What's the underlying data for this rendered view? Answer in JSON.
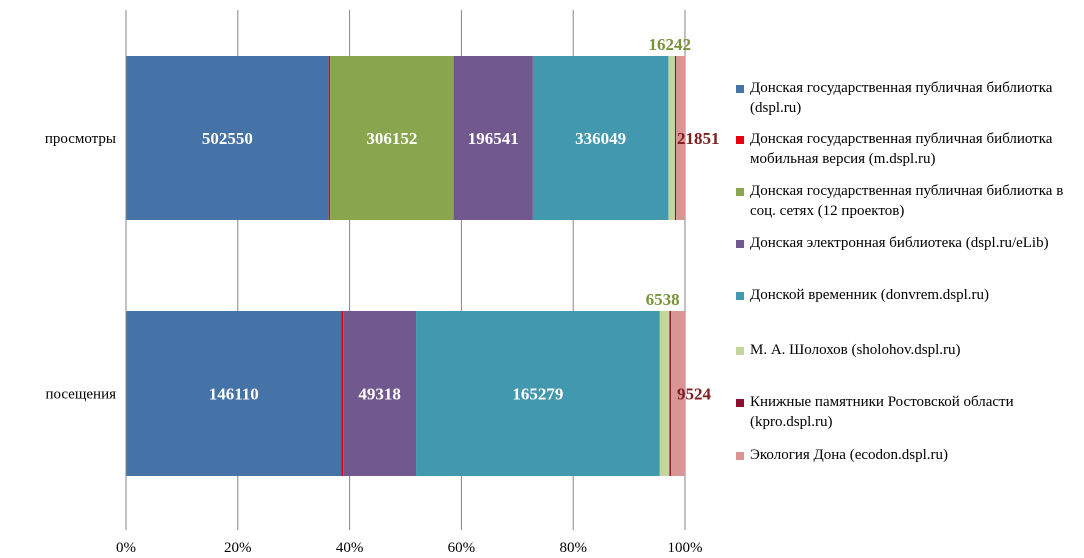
{
  "chart_data": {
    "type": "bar",
    "orientation": "horizontal",
    "stacked": "percent",
    "categories": [
      "просмотры",
      "посещения"
    ],
    "x_tick_labels": [
      "0%",
      "20%",
      "40%",
      "60%",
      "80%",
      "100%"
    ],
    "xlim": [
      0,
      100
    ],
    "grid": "vertical",
    "legend_position": "right",
    "series": [
      {
        "name": "Донская государственная публичная библиотка (dspl.ru)",
        "color": "#4572a7",
        "values": [
          502550,
          146110
        ],
        "labels": [
          "502550",
          "146110"
        ]
      },
      {
        "name": "Донская государственная публичная библиотка мобильная версия (m.dspl.ru)",
        "color": "#e8000b",
        "values": [
          3500,
          1200
        ],
        "labels": [
          "",
          ""
        ]
      },
      {
        "name": "Донская государственная публичная библиотка в соц. сетях (12 проектов)",
        "color": "#89a54e",
        "values": [
          306152,
          0
        ],
        "labels": [
          "306152",
          ""
        ]
      },
      {
        "name": "Донская электронная библиотека (dspl.ru/eLib)",
        "color": "#71588f",
        "values": [
          196541,
          49318
        ],
        "labels": [
          "196541",
          "49318"
        ]
      },
      {
        "name": "Донской временник (donvrem.dspl.ru)",
        "color": "#4198af",
        "values": [
          336049,
          165279
        ],
        "labels": [
          "336049",
          "165279"
        ]
      },
      {
        "name": "М. А. Шолохов (sholohov.dspl.ru)",
        "color": "#c3d69b",
        "values": [
          16242,
          6538
        ],
        "labels": [
          "16242",
          "6538"
        ]
      },
      {
        "name": "Книжные памятники Ростовской области (kpro.dspl.ru)",
        "color": "#8e0c2e",
        "values": [
          3000,
          1000
        ],
        "labels": [
          "",
          ""
        ]
      },
      {
        "name": "Экология Дона (ecodon.dspl.ru)",
        "color": "#d99594",
        "values": [
          21851,
          9524
        ],
        "labels": [
          "21851",
          "9524"
        ]
      }
    ]
  }
}
